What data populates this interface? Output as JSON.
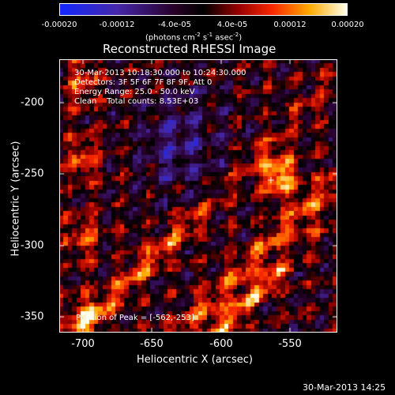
{
  "colorbar": {
    "ticks": [
      "-0.00020",
      "-0.00012",
      "-4.0e-05",
      "4.0e-05",
      "0.00012",
      "0.00020"
    ],
    "units_prefix": "(photons cm",
    "units_exp1": "-2",
    "units_mid1": " s",
    "units_exp2": "-1",
    "units_mid2": " asec",
    "units_exp3": "-2",
    "units_suffix": ")"
  },
  "title": "Reconstructed RHESSI Image",
  "annotations": {
    "time": "30-Mar-2013 10:18:30.000 to 10:24:30.000",
    "detectors": "Detectors: 3F 5F 6F 7F 8F 9F, Att 0",
    "energy": "Energy Range: 25.0 - 50.0 keV",
    "clean": "Clean    Total counts: 8.53E+03",
    "peak": "Position of Peak = [-562,-253]"
  },
  "axes": {
    "xlabel": "Heliocentric X (arcsec)",
    "ylabel": "Heliocentric Y (arcsec)",
    "xticks": [
      "-700",
      "-650",
      "-600",
      "-550"
    ],
    "yticks": [
      "-200",
      "-250",
      "-300",
      "-350"
    ]
  },
  "timestamp": "30-Mar-2013 14:25"
}
